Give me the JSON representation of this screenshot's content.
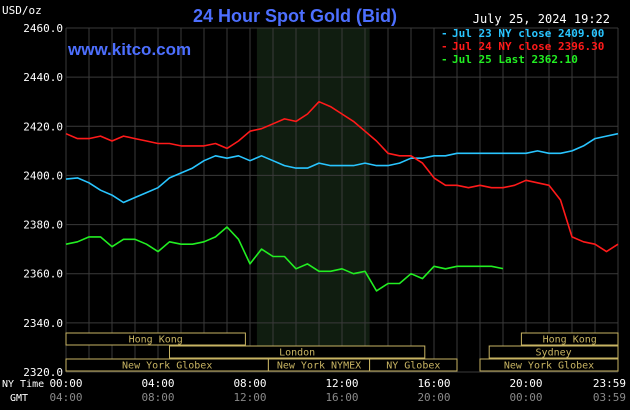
{
  "header": {
    "title": "24 Hour Spot Gold (Bid)",
    "unit": "USD/oz",
    "timestamp": "July 25, 2024 19:22",
    "website": "www.kitco.com"
  },
  "colors": {
    "background": "#000000",
    "grid": "#3a3a3a",
    "nymex_band": "#101d10",
    "title": "#4d6fff",
    "jul23": "#29c5ff",
    "jul24": "#ff1a1a",
    "jul25": "#22ee22",
    "session_box": "#c8b463"
  },
  "axis_labels": {
    "ny_time": "NY Time",
    "gmt": "GMT"
  },
  "sessions": {
    "left": [
      {
        "label": "Hong Kong",
        "row": 0,
        "start": 0,
        "end": 7.8
      },
      {
        "label": "London",
        "row": 1,
        "start": 4.5,
        "end": 15.6
      },
      {
        "label": "New York Globex",
        "row": 2,
        "start": 0,
        "end": 8.8
      },
      {
        "label": "New York NYMEX",
        "row": 2,
        "start": 8.8,
        "end": 13.2
      },
      {
        "label": "NY Globex",
        "row": 2,
        "start": 13.2,
        "end": 17
      }
    ],
    "right": [
      {
        "label": "Hong Kong",
        "row": 0,
        "start": 19.8,
        "end": 24
      },
      {
        "label": "Sydney",
        "row": 1,
        "start": 18.4,
        "end": 24
      },
      {
        "label": "New York Globex",
        "row": 2,
        "start": 18,
        "end": 24
      }
    ]
  },
  "chart_data": {
    "type": "line",
    "title": "24 Hour Spot Gold (Bid)",
    "ylabel": "USD/oz",
    "ylim": [
      2320,
      2460
    ],
    "yticks": [
      "2460.0",
      "2440.0",
      "2420.0",
      "2400.0",
      "2380.0",
      "2360.0",
      "2340.0",
      "2320.0"
    ],
    "xlim": [
      0,
      24
    ],
    "xticks_ny": [
      "00:00",
      "04:00",
      "08:00",
      "12:00",
      "16:00",
      "20:00",
      "23:59"
    ],
    "xticks_gmt": [
      "04:00",
      "08:00",
      "12:00",
      "16:00",
      "20:00",
      "00:00",
      "03:59"
    ],
    "shaded_region": [
      8.3,
      13.2
    ],
    "legend_position": "top-right",
    "series": [
      {
        "name": "Jul 23 NY close 2409.00",
        "color": "#29c5ff",
        "points": [
          [
            0,
            2398.5
          ],
          [
            0.5,
            2399
          ],
          [
            1,
            2397
          ],
          [
            1.5,
            2394
          ],
          [
            2,
            2392
          ],
          [
            2.5,
            2389
          ],
          [
            3,
            2391
          ],
          [
            3.5,
            2393
          ],
          [
            4,
            2395
          ],
          [
            4.5,
            2399
          ],
          [
            5,
            2401
          ],
          [
            5.5,
            2403
          ],
          [
            6,
            2406
          ],
          [
            6.5,
            2408
          ],
          [
            7,
            2407
          ],
          [
            7.5,
            2408
          ],
          [
            8,
            2406
          ],
          [
            8.5,
            2408
          ],
          [
            9,
            2406
          ],
          [
            9.5,
            2404
          ],
          [
            10,
            2403
          ],
          [
            10.5,
            2403
          ],
          [
            11,
            2405
          ],
          [
            11.5,
            2404
          ],
          [
            12,
            2404
          ],
          [
            12.5,
            2404
          ],
          [
            13,
            2405
          ],
          [
            13.5,
            2404
          ],
          [
            14,
            2404
          ],
          [
            14.5,
            2405
          ],
          [
            15,
            2407
          ],
          [
            15.5,
            2407
          ],
          [
            16,
            2408
          ],
          [
            16.5,
            2408
          ],
          [
            17,
            2409
          ],
          [
            17.5,
            2409
          ],
          [
            18,
            2409
          ],
          [
            18.5,
            2409
          ],
          [
            19,
            2409
          ],
          [
            19.5,
            2409
          ],
          [
            20,
            2409
          ],
          [
            20.5,
            2410
          ],
          [
            21,
            2409
          ],
          [
            21.5,
            2409
          ],
          [
            22,
            2410
          ],
          [
            22.5,
            2412
          ],
          [
            23,
            2415
          ],
          [
            23.5,
            2416
          ],
          [
            24,
            2417
          ]
        ]
      },
      {
        "name": "Jul 24 NY close 2396.30",
        "color": "#ff1a1a",
        "points": [
          [
            0,
            2417
          ],
          [
            0.5,
            2415
          ],
          [
            1,
            2415
          ],
          [
            1.5,
            2416
          ],
          [
            2,
            2414
          ],
          [
            2.5,
            2416
          ],
          [
            3,
            2415
          ],
          [
            3.5,
            2414
          ],
          [
            4,
            2413
          ],
          [
            4.5,
            2413
          ],
          [
            5,
            2412
          ],
          [
            5.5,
            2412
          ],
          [
            6,
            2412
          ],
          [
            6.5,
            2413
          ],
          [
            7,
            2411
          ],
          [
            7.5,
            2414
          ],
          [
            8,
            2418
          ],
          [
            8.5,
            2419
          ],
          [
            9,
            2421
          ],
          [
            9.5,
            2423
          ],
          [
            10,
            2422
          ],
          [
            10.5,
            2425
          ],
          [
            11,
            2430
          ],
          [
            11.5,
            2428
          ],
          [
            12,
            2425
          ],
          [
            12.5,
            2422
          ],
          [
            13,
            2418
          ],
          [
            13.5,
            2414
          ],
          [
            14,
            2409
          ],
          [
            14.5,
            2408
          ],
          [
            15,
            2408
          ],
          [
            15.5,
            2405
          ],
          [
            16,
            2399
          ],
          [
            16.5,
            2396
          ],
          [
            17,
            2396
          ],
          [
            17.5,
            2395
          ],
          [
            18,
            2396
          ],
          [
            18.5,
            2395
          ],
          [
            19,
            2395
          ],
          [
            19.5,
            2396
          ],
          [
            20,
            2398
          ],
          [
            20.5,
            2397
          ],
          [
            21,
            2396
          ],
          [
            21.5,
            2390
          ],
          [
            22,
            2375
          ],
          [
            22.5,
            2373
          ],
          [
            23,
            2372
          ],
          [
            23.5,
            2369
          ],
          [
            24,
            2372
          ]
        ]
      },
      {
        "name": "Jul 25 Last 2362.10",
        "color": "#22ee22",
        "points": [
          [
            0,
            2372
          ],
          [
            0.5,
            2373
          ],
          [
            1,
            2375
          ],
          [
            1.5,
            2375
          ],
          [
            2,
            2371
          ],
          [
            2.5,
            2374
          ],
          [
            3,
            2374
          ],
          [
            3.5,
            2372
          ],
          [
            4,
            2369
          ],
          [
            4.5,
            2373
          ],
          [
            5,
            2372
          ],
          [
            5.5,
            2372
          ],
          [
            6,
            2373
          ],
          [
            6.5,
            2375
          ],
          [
            7,
            2379
          ],
          [
            7.5,
            2374
          ],
          [
            8,
            2364
          ],
          [
            8.5,
            2370
          ],
          [
            9,
            2367
          ],
          [
            9.5,
            2367
          ],
          [
            10,
            2362
          ],
          [
            10.5,
            2364
          ],
          [
            11,
            2361
          ],
          [
            11.5,
            2361
          ],
          [
            12,
            2362
          ],
          [
            12.5,
            2360
          ],
          [
            13,
            2361
          ],
          [
            13.5,
            2353
          ],
          [
            14,
            2356
          ],
          [
            14.5,
            2356
          ],
          [
            15,
            2360
          ],
          [
            15.5,
            2358
          ],
          [
            16,
            2363
          ],
          [
            16.5,
            2362
          ],
          [
            17,
            2363
          ],
          [
            17.5,
            2363
          ],
          [
            18,
            2363
          ],
          [
            18.5,
            2363
          ],
          [
            19,
            2362.1
          ]
        ]
      }
    ]
  }
}
